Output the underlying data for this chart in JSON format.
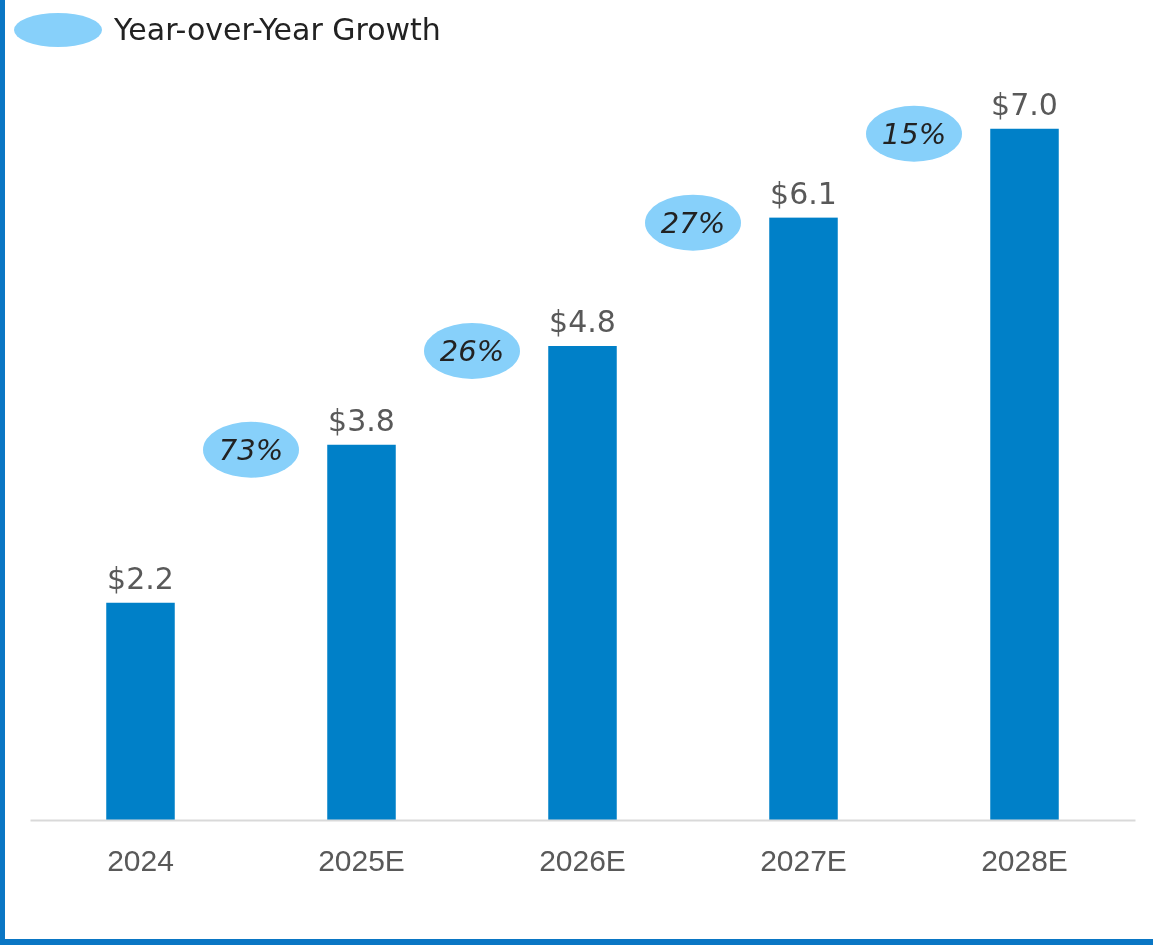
{
  "chart_data": {
    "type": "bar",
    "categories": [
      "2024",
      "2025E",
      "2026E",
      "2027E",
      "2028E"
    ],
    "values": [
      2.2,
      3.8,
      4.8,
      6.1,
      7.0
    ],
    "value_labels": [
      "$2.2",
      "$3.8",
      "$4.8",
      "$6.1",
      "$7.0"
    ],
    "color": "#0080c8",
    "tick_labels": "x",
    "grid": false,
    "annotations": [
      "Year-over-Year Growth",
      "73%",
      "26%",
      "27%",
      "15%"
    ]
  }
}
